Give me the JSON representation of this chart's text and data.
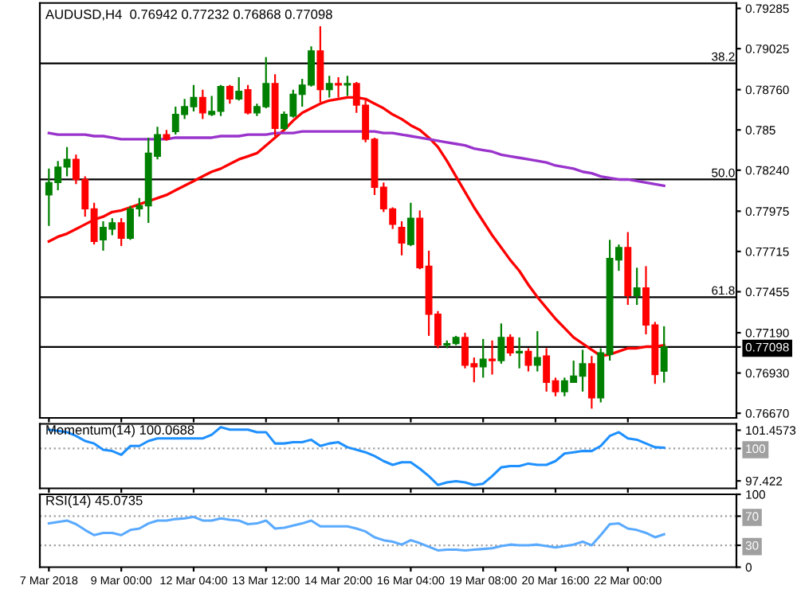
{
  "chart_data": [
    {
      "type": "candlestick",
      "title": "AUDUSD,H4  0.76942 0.77232 0.76868 0.77098",
      "categories": [
        null,
        null,
        null,
        null,
        null,
        null,
        null,
        null,
        null,
        null,
        null,
        null,
        null,
        null,
        null,
        null,
        null,
        null,
        null,
        null,
        null,
        null,
        null,
        null,
        null,
        null,
        null,
        null,
        null,
        null,
        null,
        null,
        null,
        null,
        null,
        null,
        null,
        null,
        null,
        null,
        null,
        null,
        null,
        null,
        null,
        null,
        null,
        null,
        null,
        null,
        null,
        null,
        null,
        null,
        null,
        null,
        null,
        null,
        null,
        null,
        null,
        null,
        null,
        null,
        null,
        null,
        null,
        null,
        null
      ],
      "ohlc": [
        [
          0.7808,
          0.7825,
          0.7788,
          0.7816
        ],
        [
          0.7816,
          0.783,
          0.7811,
          0.7826
        ],
        [
          0.7826,
          0.7839,
          0.782,
          0.7831
        ],
        [
          0.7831,
          0.7834,
          0.7815,
          0.7818
        ],
        [
          0.7818,
          0.782,
          0.7794,
          0.7799
        ],
        [
          0.7799,
          0.7803,
          0.7776,
          0.7778
        ],
        [
          0.7779,
          0.7791,
          0.7772,
          0.7787
        ],
        [
          0.7786,
          0.7793,
          0.7782,
          0.779
        ],
        [
          0.779,
          0.7793,
          0.7775,
          0.778
        ],
        [
          0.778,
          0.7801,
          0.7779,
          0.7799
        ],
        [
          0.7799,
          0.7806,
          0.7794,
          0.7801
        ],
        [
          0.7801,
          0.7845,
          0.779,
          0.7835
        ],
        [
          0.7833,
          0.7852,
          0.7831,
          0.7847
        ],
        [
          0.7847,
          0.785,
          0.7843,
          0.7844
        ],
        [
          0.7849,
          0.7865,
          0.7847,
          0.786
        ],
        [
          0.786,
          0.787,
          0.7857,
          0.7865
        ],
        [
          0.7865,
          0.7879,
          0.7862,
          0.7871
        ],
        [
          0.7871,
          0.7876,
          0.7857,
          0.7861
        ],
        [
          0.786,
          0.7872,
          0.7859,
          0.7862
        ],
        [
          0.7862,
          0.7879,
          0.7859,
          0.7878
        ],
        [
          0.7878,
          0.7879,
          0.7867,
          0.787
        ],
        [
          0.787,
          0.7884,
          0.7869,
          0.7875
        ],
        [
          0.7876,
          0.7879,
          0.786,
          0.7861
        ],
        [
          0.7861,
          0.7867,
          0.7859,
          0.7865
        ],
        [
          0.7865,
          0.7897,
          0.7864,
          0.788
        ],
        [
          0.788,
          0.7886,
          0.7846,
          0.7851
        ],
        [
          0.7851,
          0.7862,
          0.785,
          0.786
        ],
        [
          0.7859,
          0.7876,
          0.7858,
          0.7873
        ],
        [
          0.7873,
          0.7883,
          0.7865,
          0.7879
        ],
        [
          0.7879,
          0.7904,
          0.7878,
          0.7901
        ],
        [
          0.7901,
          0.7917,
          0.7868,
          0.7876
        ],
        [
          0.7876,
          0.7885,
          0.7871,
          0.788
        ],
        [
          0.788,
          0.7884,
          0.7871,
          0.7879
        ],
        [
          0.7879,
          0.7885,
          0.7872,
          0.788
        ],
        [
          0.788,
          0.7881,
          0.7861,
          0.7866
        ],
        [
          0.7866,
          0.7869,
          0.7842,
          0.7844
        ],
        [
          0.7844,
          0.7845,
          0.7808,
          0.7813
        ],
        [
          0.7813,
          0.7816,
          0.7797,
          0.7799
        ],
        [
          0.7799,
          0.78,
          0.7786,
          0.7789
        ],
        [
          0.7787,
          0.7791,
          0.7769,
          0.7777
        ],
        [
          0.7776,
          0.7803,
          0.7775,
          0.7793
        ],
        [
          0.7793,
          0.7798,
          0.776,
          0.7761
        ],
        [
          0.7762,
          0.7772,
          0.7717,
          0.7731
        ],
        [
          0.7731,
          0.7733,
          0.7709,
          0.7711
        ],
        [
          0.7711,
          0.7714,
          0.7709,
          0.7712
        ],
        [
          0.7712,
          0.7717,
          0.7711,
          0.7716
        ],
        [
          0.7716,
          0.7719,
          0.7696,
          0.7698
        ],
        [
          0.7699,
          0.7703,
          0.7687,
          0.7697
        ],
        [
          0.7697,
          0.7715,
          0.769,
          0.7702
        ],
        [
          0.7702,
          0.7714,
          0.7692,
          0.7701
        ],
        [
          0.7701,
          0.7725,
          0.7699,
          0.7716
        ],
        [
          0.7716,
          0.7718,
          0.7704,
          0.7706
        ],
        [
          0.7706,
          0.7716,
          0.7696,
          0.7707
        ],
        [
          0.7707,
          0.7709,
          0.7694,
          0.7698
        ],
        [
          0.7698,
          0.772,
          0.7694,
          0.7703
        ],
        [
          0.7704,
          0.7709,
          0.7681,
          0.7687
        ],
        [
          0.7688,
          0.769,
          0.7678,
          0.7681
        ],
        [
          0.7681,
          0.769,
          0.7678,
          0.7688
        ],
        [
          0.7687,
          0.7701,
          0.7687,
          0.7691
        ],
        [
          0.7691,
          0.7708,
          0.7681,
          0.7699
        ],
        [
          0.7699,
          0.7704,
          0.767,
          0.7677
        ],
        [
          0.7677,
          0.7709,
          0.7674,
          0.7706
        ],
        [
          0.7705,
          0.7779,
          0.7701,
          0.7767
        ],
        [
          0.7766,
          0.7776,
          0.7759,
          0.7774
        ],
        [
          0.7774,
          0.7784,
          0.7737,
          0.7743
        ],
        [
          0.7743,
          0.7761,
          0.7737,
          0.7748
        ],
        [
          0.7748,
          0.7762,
          0.7718,
          0.7724
        ],
        [
          0.7724,
          0.7726,
          0.7686,
          0.7692
        ],
        [
          0.76942,
          0.77232,
          0.76868,
          0.77098
        ]
      ],
      "colors": [
        "#008000",
        "#008000",
        "#008000",
        "#ff0000",
        "#ff0000",
        "#ff0000",
        "#008000",
        "#008000",
        "#ff0000",
        "#008000",
        "#008000",
        "#008000",
        "#008000",
        "#ff0000",
        "#008000",
        "#008000",
        "#008000",
        "#ff0000",
        "#008000",
        "#008000",
        "#ff0000",
        "#008000",
        "#ff0000",
        "#008000",
        "#008000",
        "#ff0000",
        "#008000",
        "#008000",
        "#008000",
        "#008000",
        "#ff0000",
        "#008000",
        "#ff0000",
        "#008000",
        "#ff0000",
        "#ff0000",
        "#ff0000",
        "#ff0000",
        "#ff0000",
        "#ff0000",
        "#008000",
        "#ff0000",
        "#ff0000",
        "#ff0000",
        "#008000",
        "#008000",
        "#ff0000",
        "#ff0000",
        "#008000",
        "#ff0000",
        "#008000",
        "#ff0000",
        "#008000",
        "#ff0000",
        "#008000",
        "#ff0000",
        "#ff0000",
        "#008000",
        "#008000",
        "#008000",
        "#ff0000",
        "#008000",
        "#008000",
        "#008000",
        "#ff0000",
        "#008000",
        "#ff0000",
        "#ff0000",
        "#008000"
      ],
      "series": [
        {
          "type": "line",
          "color": "#ff0000",
          "values": [
            0.7778,
            0.7781,
            0.7783,
            0.7786,
            0.7789,
            0.7792,
            0.7794,
            0.7797,
            0.7798,
            0.78,
            0.7802,
            0.7804,
            0.7806,
            0.7808,
            0.7811,
            0.7814,
            0.7817,
            0.782,
            0.7823,
            0.7825,
            0.7828,
            0.7831,
            0.7833,
            0.7835,
            0.784,
            0.7845,
            0.785,
            0.7856,
            0.7861,
            0.7864,
            0.7867,
            0.7869,
            0.787,
            0.7871,
            0.7871,
            0.787,
            0.7867,
            0.7864,
            0.786,
            0.7857,
            0.7853,
            0.785,
            0.7845,
            0.7839,
            0.783,
            0.782,
            0.781,
            0.78,
            0.7791,
            0.7782,
            0.7774,
            0.7766,
            0.7759,
            0.775,
            0.7742,
            0.7735,
            0.7728,
            0.7722,
            0.7716,
            0.7712,
            0.7708,
            0.7704,
            0.7705,
            0.7707,
            0.7709,
            0.7709,
            0.771,
            0.771,
            0.7711
          ]
        },
        {
          "type": "line",
          "color": "#9933cc",
          "values": [
            0.7848,
            0.7847,
            0.7847,
            0.7847,
            0.7847,
            0.7846,
            0.7846,
            0.7845,
            0.7844,
            0.7844,
            0.7844,
            0.7844,
            0.7844,
            0.7844,
            0.7845,
            0.7845,
            0.7845,
            0.7845,
            0.7845,
            0.7846,
            0.7846,
            0.7846,
            0.7847,
            0.7847,
            0.7847,
            0.7848,
            0.7848,
            0.7848,
            0.7849,
            0.7849,
            0.7849,
            0.7849,
            0.7849,
            0.7849,
            0.7849,
            0.7849,
            0.7849,
            0.7848,
            0.7848,
            0.7847,
            0.7846,
            0.7845,
            0.7844,
            0.7843,
            0.7842,
            0.7841,
            0.784,
            0.7838,
            0.7837,
            0.7836,
            0.7834,
            0.7833,
            0.7832,
            0.7831,
            0.783,
            0.7829,
            0.7827,
            0.7826,
            0.7825,
            0.7823,
            0.7822,
            0.782,
            0.7819,
            0.7818,
            0.7818,
            0.7817,
            0.7816,
            0.7815,
            0.7814
          ]
        }
      ],
      "ylim": [
        0.7664,
        0.7932
      ],
      "yticks": [
        0.79285,
        0.79025,
        {
          "value": 0.7876,
          "label": "0.78760"
        },
        0.785,
        {
          "value": 0.7824,
          "label": "0.78240"
        },
        0.77975,
        0.77715,
        0.77455,
        {
          "value": 0.7719,
          "label": "0.77190"
        },
        0.77098,
        {
          "value": 0.7693,
          "label": "0.76930"
        },
        {
          "value": 0.7667,
          "label": "0.76670"
        }
      ],
      "ref_lines": [
        {
          "axis": "y",
          "value": 0.7893,
          "color": "#000000"
        },
        {
          "axis": "y",
          "value": 0.7818,
          "color": "#000000"
        },
        {
          "axis": "y",
          "value": 0.7742,
          "color": "#000000"
        },
        {
          "axis": "y",
          "value": 0.77098,
          "color": "#000000"
        }
      ],
      "annotations": [
        {
          "text": "38.2",
          "y": 0.7893
        },
        {
          "text": "50.0",
          "y": 0.7818
        },
        {
          "text": "61.8",
          "y": 0.7742
        }
      ],
      "tick_labels": "y"
    },
    {
      "type": "line",
      "title": "Momentum(14) 100.0688",
      "categories": [
        null,
        null,
        null,
        null,
        null,
        null,
        null,
        null,
        null,
        null,
        null,
        null,
        null,
        null,
        null,
        null,
        null,
        null,
        null,
        null,
        null,
        null,
        null,
        null,
        null,
        null,
        null,
        null,
        null,
        null,
        null,
        null,
        null,
        null,
        null,
        null,
        null,
        null,
        null,
        null,
        null,
        null,
        null,
        null,
        null,
        null,
        null,
        null,
        null,
        null,
        null,
        null,
        null,
        null,
        null,
        null,
        null,
        null,
        null,
        null,
        null,
        null,
        null,
        null,
        null,
        null,
        null,
        null,
        null
      ],
      "series": [
        {
          "color": "#1e90ff",
          "values": [
            101.5,
            101.4,
            101.3,
            101.0,
            100.6,
            100.4,
            99.9,
            99.8,
            99.5,
            100.2,
            100.2,
            100.6,
            100.8,
            100.8,
            100.8,
            100.8,
            100.8,
            100.8,
            101.1,
            101.7,
            101.5,
            101.5,
            101.5,
            101.3,
            101.3,
            100.4,
            100.4,
            100.5,
            100.5,
            100.7,
            100.2,
            100.4,
            100.5,
            100.1,
            99.9,
            99.7,
            99.4,
            99.0,
            98.7,
            98.9,
            98.9,
            98.4,
            97.8,
            97.1,
            97.3,
            97.4,
            97.3,
            97.1,
            97.2,
            97.8,
            98.5,
            98.6,
            98.6,
            98.8,
            98.7,
            98.7,
            99.0,
            99.6,
            99.7,
            99.8,
            99.8,
            100.2,
            101.0,
            101.3,
            100.8,
            100.7,
            100.4,
            100.1,
            100.0688
          ]
        }
      ],
      "ylim": [
        96.83,
        101.96
      ],
      "yticks": [
        101.4573,
        100,
        97.422
      ],
      "ref_lines": [
        {
          "axis": "y",
          "value": 100,
          "color": "#a0a0a0",
          "line_style": "dotted"
        }
      ],
      "tick_labels": "y"
    },
    {
      "type": "line",
      "title": "RSI(14) 45.0735",
      "categories": [
        "7 Mar 2018",
        null,
        null,
        null,
        null,
        null,
        null,
        null,
        "9 Mar 00:00",
        null,
        null,
        null,
        null,
        null,
        null,
        null,
        "12 Mar 04:00",
        null,
        null,
        null,
        null,
        null,
        null,
        null,
        "13 Mar 12:00",
        null,
        null,
        null,
        null,
        null,
        null,
        null,
        "14 Mar 20:00",
        null,
        null,
        null,
        null,
        null,
        null,
        null,
        "16 Mar 04:00",
        null,
        null,
        null,
        null,
        null,
        null,
        null,
        "19 Mar 08:00",
        null,
        null,
        null,
        null,
        null,
        null,
        null,
        "20 Mar 16:00",
        null,
        null,
        null,
        null,
        null,
        null,
        null,
        "22 Mar 00:00",
        null,
        null,
        null,
        null
      ],
      "series": [
        {
          "color": "#5aaaff",
          "values": [
            60,
            62,
            64,
            59,
            51,
            44,
            47,
            47,
            44,
            51,
            53,
            60,
            64,
            64,
            66,
            67,
            69,
            64,
            64,
            67,
            65,
            64,
            59,
            60,
            64,
            53,
            54,
            57,
            60,
            64,
            56,
            56,
            56,
            56,
            53,
            49,
            41,
            37,
            35,
            31,
            37,
            33,
            28,
            23,
            24,
            24,
            23,
            24,
            25,
            26,
            29,
            31,
            30,
            30,
            31,
            29,
            27,
            29,
            31,
            35,
            30,
            44,
            59,
            60,
            53,
            51,
            47,
            41,
            45.0735
          ]
        }
      ],
      "ylim": [
        0,
        100
      ],
      "yticks": [
        100,
        70,
        30,
        0
      ],
      "ref_lines": [
        {
          "axis": "y",
          "value": 70,
          "color": "#a0a0a0",
          "line_style": "dotted"
        },
        {
          "axis": "y",
          "value": 30,
          "color": "#a0a0a0",
          "line_style": "dotted"
        }
      ]
    }
  ]
}
